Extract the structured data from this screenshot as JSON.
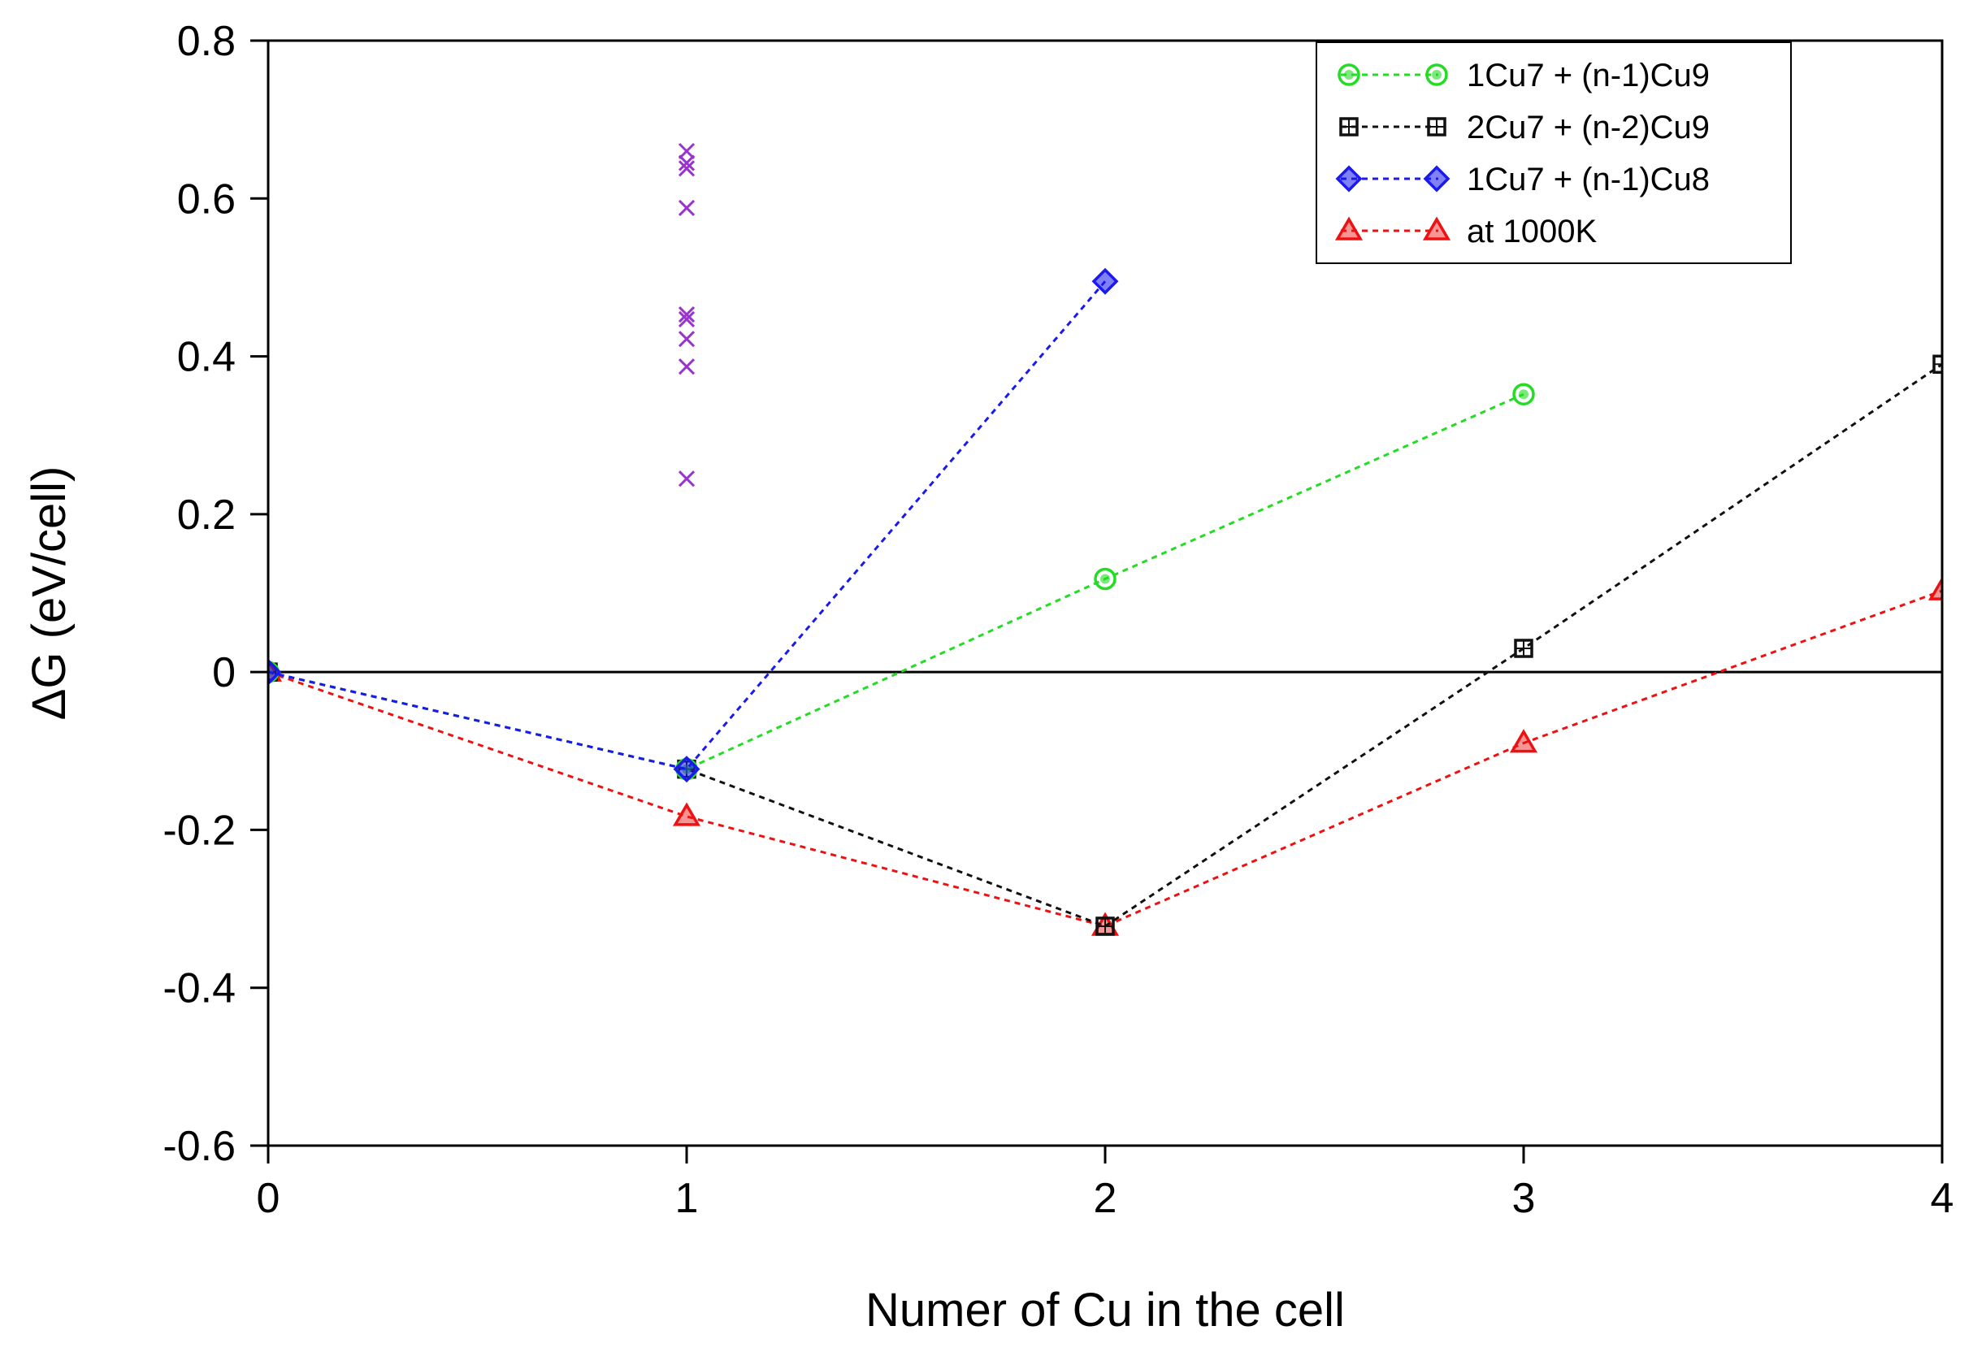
{
  "chart_data": {
    "type": "line",
    "title": "",
    "xlabel": "Numer of Cu in the cell",
    "ylabel": "ΔG (eV/cell)",
    "xlim": [
      0,
      4
    ],
    "ylim": [
      -0.6,
      0.8
    ],
    "x_ticks": [
      "0",
      "1",
      "2",
      "3",
      "4"
    ],
    "y_ticks": [
      "0.8",
      "0.6",
      "0.4",
      "0.2",
      "0",
      "-0.2",
      "-0.4",
      "-0.6"
    ],
    "zero_line": true,
    "legend_position": "top-right",
    "series": [
      {
        "name": "1Cu7 + (n-1)Cu9",
        "color": "#22dd22",
        "marker": "circle",
        "x": [
          0,
          1,
          2,
          3
        ],
        "y": [
          0,
          -0.123,
          0.118,
          0.352
        ]
      },
      {
        "name": "2Cu7 + (n-2)Cu9",
        "color": "#111111",
        "marker": "square",
        "x": [
          0,
          1,
          2,
          3,
          4
        ],
        "y": [
          0,
          -0.123,
          -0.322,
          0.03,
          0.39
        ]
      },
      {
        "name": "1Cu7 + (n-1)Cu8",
        "color": "#1a1aee",
        "marker": "diamond",
        "x": [
          0,
          1,
          2
        ],
        "y": [
          0,
          -0.123,
          0.495
        ]
      },
      {
        "name": "at 1000K",
        "color": "#ee1111",
        "marker": "triangle",
        "x": [
          0,
          1,
          2,
          3,
          4
        ],
        "y": [
          0,
          -0.183,
          -0.322,
          -0.09,
          0.103
        ]
      }
    ],
    "scatter": {
      "color": "#9933cc",
      "marker": "x",
      "x": [
        1,
        1,
        1,
        1,
        1,
        1,
        1,
        1,
        1
      ],
      "y": [
        0.66,
        0.645,
        0.638,
        0.588,
        0.453,
        0.447,
        0.422,
        0.387,
        0.245
      ]
    }
  }
}
